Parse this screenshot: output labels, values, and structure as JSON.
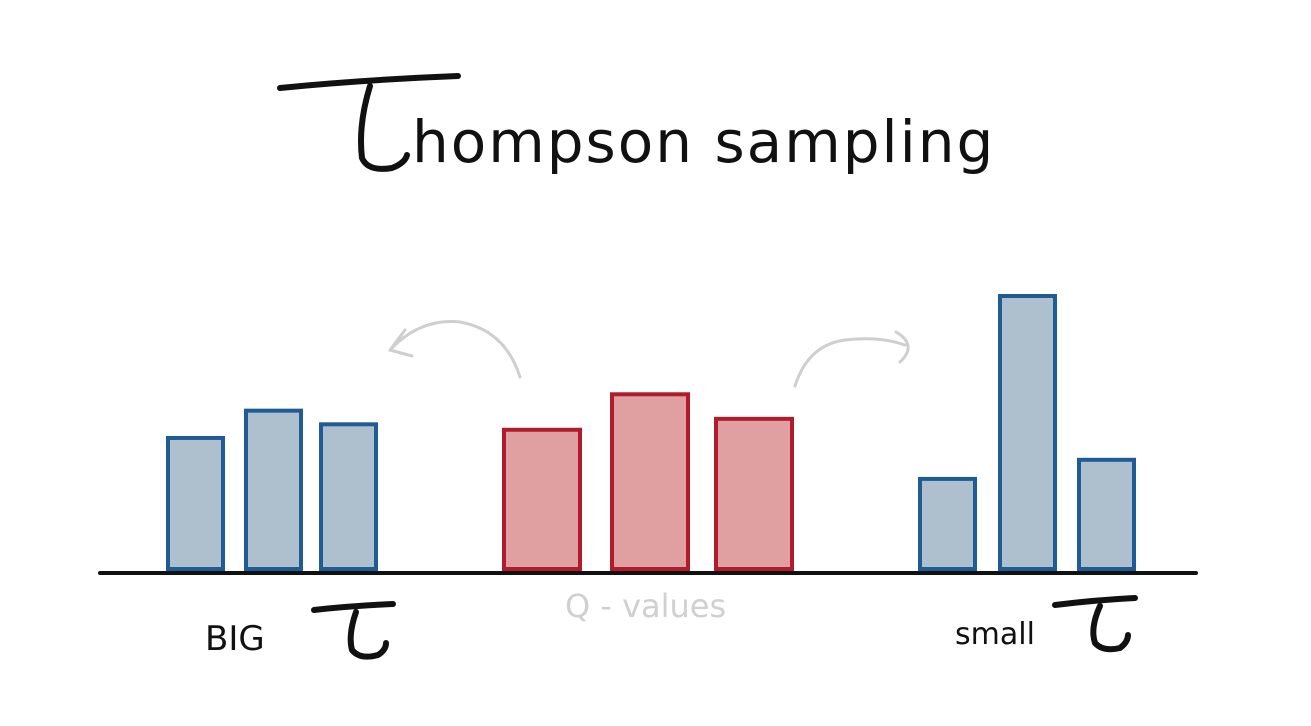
{
  "title": {
    "prefix": "hompson sampling"
  },
  "labels": {
    "left": "BIG",
    "center": "Q - values",
    "right": "small"
  },
  "colors": {
    "blue_fill": "#aebfcd",
    "blue_stroke": "#205c94",
    "red_fill": "#e0a0a2",
    "red_stroke": "#b01c2c",
    "ink": "#111111",
    "faint": "#cfcfcf"
  },
  "groups": [
    {
      "name": "big-tau-samples",
      "color": "blue",
      "values": [
        0.48,
        0.58,
        0.53
      ]
    },
    {
      "name": "q-values",
      "color": "red",
      "values": [
        0.51,
        0.64,
        0.55
      ]
    },
    {
      "name": "small-tau-samples",
      "color": "blue",
      "values": [
        0.33,
        1.0,
        0.4
      ]
    }
  ]
}
